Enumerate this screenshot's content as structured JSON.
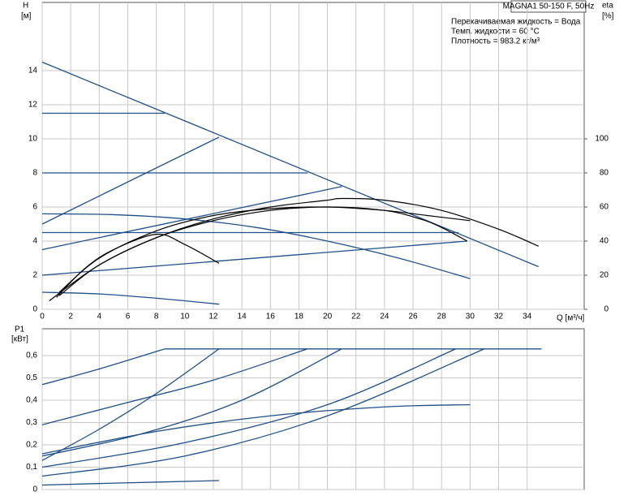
{
  "chart_data": [
    {
      "type": "line",
      "title": "MAGNA1 50-150 F, 50Hz",
      "annotations": [
        "Перекачиваемая жидкость = Вода",
        "Темп. жидкости = 60 °C",
        "Плотность = 983.2 кг/м³"
      ],
      "ylabel": "H",
      "ylabel_unit": "[м]",
      "y2label": "eta",
      "y2label_unit": "[%]",
      "xlabel": "Q [м³/ч]",
      "xlim": [
        0,
        38
      ],
      "xticks": [
        0,
        2,
        4,
        6,
        8,
        10,
        12,
        14,
        16,
        18,
        20,
        22,
        24,
        26,
        28,
        30,
        32,
        34
      ],
      "ylim": [
        0,
        18
      ],
      "yticks": [
        0,
        2,
        4,
        6,
        8,
        10,
        12,
        14
      ],
      "y2lim": [
        0,
        180
      ],
      "y2ticks": [
        0,
        20,
        40,
        60,
        80,
        100
      ],
      "grid": true,
      "series": [
        {
          "color": "#1f4f86",
          "x": [
            0,
            34.8
          ],
          "values": [
            14.5,
            2.5
          ]
        },
        {
          "color": "#1f4f86",
          "x": [
            0,
            8.6
          ],
          "values": [
            11.5,
            11.5
          ]
        },
        {
          "color": "#1f4f86",
          "x": [
            0,
            18.6
          ],
          "values": [
            8,
            8
          ]
        },
        {
          "color": "#1f4f86",
          "x": [
            0,
            29.2
          ],
          "values": [
            4.5,
            4.5
          ]
        },
        {
          "color": "#1f4f86",
          "x": [
            0,
            12.4
          ],
          "values": [
            5,
            10.1
          ]
        },
        {
          "color": "#1f4f86",
          "x": [
            0,
            21
          ],
          "values": [
            3.5,
            7.2
          ]
        },
        {
          "color": "#1f4f86",
          "x": [
            0,
            29.8
          ],
          "values": [
            2,
            4
          ]
        },
        {
          "color": "#1f4f86",
          "x": [
            0,
            5,
            10,
            15,
            20,
            25,
            30
          ],
          "values": [
            5.6,
            5.55,
            5.3,
            4.8,
            4.0,
            3.0,
            1.8
          ]
        },
        {
          "color": "#1f4f86",
          "x": [
            0,
            4,
            8,
            12.4
          ],
          "values": [
            1,
            0.9,
            0.65,
            0.3
          ]
        },
        {
          "color": "#000000",
          "axis": "y2",
          "x": [
            0.5,
            4,
            8,
            12,
            16,
            20,
            21,
            24,
            28,
            32,
            34.8
          ],
          "values": [
            5,
            26,
            42,
            53,
            60,
            64,
            65,
            64,
            58,
            47,
            37
          ]
        },
        {
          "color": "#000000",
          "axis": "y2",
          "x": [
            1.2,
            4,
            8,
            12,
            16,
            20,
            24,
            26.5,
            28,
            29.8
          ],
          "values": [
            8,
            26,
            42,
            52,
            58,
            60,
            58,
            53,
            48,
            40
          ]
        },
        {
          "color": "#000000",
          "axis": "y2",
          "x": [
            1,
            3,
            5,
            8,
            10,
            12.4
          ],
          "values": [
            7,
            24,
            35,
            44,
            38,
            27
          ]
        },
        {
          "color": "#000000",
          "axis": "y2",
          "x": [
            1.2,
            4,
            8,
            12,
            16,
            20,
            24,
            27,
            30
          ],
          "values": [
            10,
            30,
            46,
            55,
            59,
            60,
            58,
            55,
            52
          ]
        }
      ]
    },
    {
      "type": "line",
      "ylabel": "P1",
      "ylabel_unit": "[кВт]",
      "xlim": [
        0,
        38
      ],
      "ylim": [
        0,
        0.72
      ],
      "yticks": [
        0,
        {
          "value": 0.1,
          "label": "0,1"
        },
        {
          "value": 0.2,
          "label": "0,2"
        },
        {
          "value": 0.3,
          "label": "0,3"
        },
        {
          "value": 0.4,
          "label": "0,4"
        },
        {
          "value": 0.5,
          "label": "0,5"
        },
        {
          "value": 0.6,
          "label": "0,6"
        }
      ],
      "grid": true,
      "series": [
        {
          "color": "#1f4f86",
          "x": [
            8.6,
            35
          ],
          "values": [
            0.63,
            0.63
          ]
        },
        {
          "color": "#1f4f86",
          "x": [
            0,
            4,
            8.6
          ],
          "values": [
            0.47,
            0.54,
            0.63
          ]
        },
        {
          "color": "#1f4f86",
          "x": [
            0,
            6,
            12,
            18.6
          ],
          "values": [
            0.29,
            0.39,
            0.49,
            0.63
          ]
        },
        {
          "color": "#1f4f86",
          "x": [
            0,
            4,
            8,
            12.4
          ],
          "values": [
            0.13,
            0.27,
            0.43,
            0.63
          ]
        },
        {
          "color": "#1f4f86",
          "x": [
            0,
            7,
            14,
            21
          ],
          "values": [
            0.15,
            0.25,
            0.4,
            0.63
          ]
        },
        {
          "color": "#1f4f86",
          "x": [
            0,
            10,
            20,
            29
          ],
          "values": [
            0.1,
            0.21,
            0.38,
            0.63
          ]
        },
        {
          "color": "#1f4f86",
          "x": [
            0,
            10,
            20,
            31
          ],
          "values": [
            0.06,
            0.15,
            0.33,
            0.63
          ]
        },
        {
          "color": "#1f4f86",
          "x": [
            0,
            8,
            16,
            24,
            30
          ],
          "values": [
            0.16,
            0.26,
            0.33,
            0.37,
            0.38
          ]
        },
        {
          "color": "#1f4f86",
          "x": [
            0,
            6,
            12.4
          ],
          "values": [
            0.02,
            0.03,
            0.04
          ]
        }
      ]
    }
  ]
}
